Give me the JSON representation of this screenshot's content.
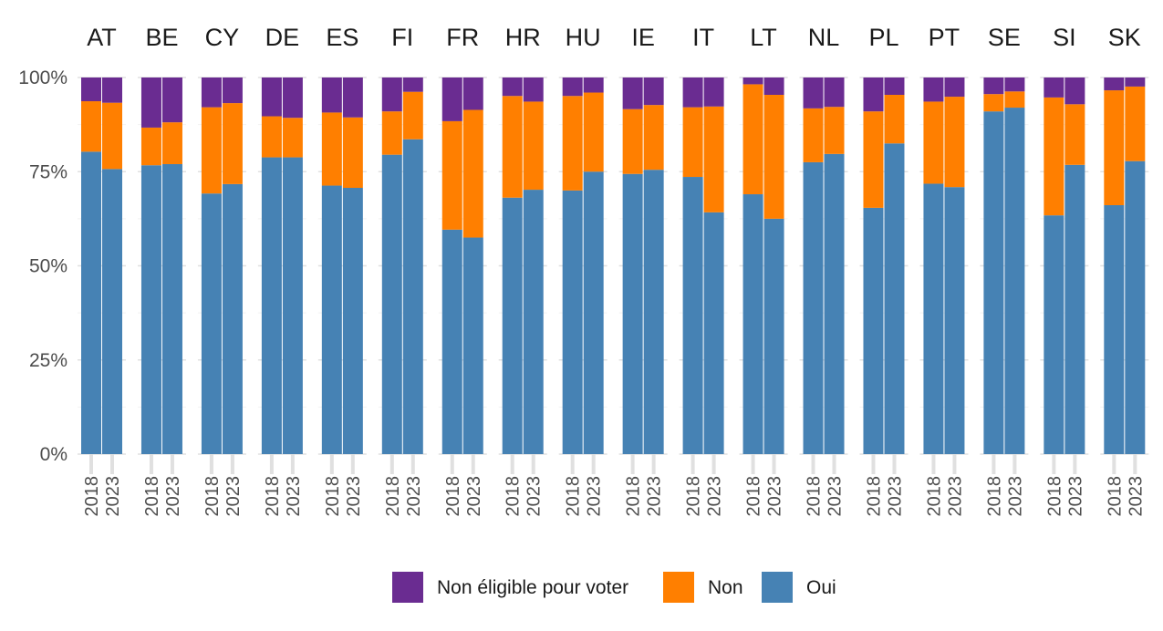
{
  "chart_data": {
    "type": "bar",
    "stacked": true,
    "facets": [
      "AT",
      "BE",
      "CY",
      "DE",
      "ES",
      "FI",
      "FR",
      "HR",
      "HU",
      "IE",
      "IT",
      "LT",
      "NL",
      "PL",
      "PT",
      "SE",
      "SI",
      "SK"
    ],
    "x": [
      "2018",
      "2023"
    ],
    "y_ticks": [
      "0%",
      "25%",
      "50%",
      "75%",
      "100%"
    ],
    "ylim": [
      0,
      1
    ],
    "grid": true,
    "legend_position": "bottom",
    "series": [
      {
        "name": "Oui",
        "color": "#4682B4",
        "values": [
          [
            0.803,
            0.757
          ],
          [
            0.767,
            0.77
          ],
          [
            0.692,
            0.717
          ],
          [
            0.788,
            0.788
          ],
          [
            0.713,
            0.707
          ],
          [
            0.795,
            0.836
          ],
          [
            0.596,
            0.575
          ],
          [
            0.681,
            0.702
          ],
          [
            0.7,
            0.75
          ],
          [
            0.744,
            0.755
          ],
          [
            0.736,
            0.642
          ],
          [
            0.69,
            0.625
          ],
          [
            0.775,
            0.797
          ],
          [
            0.654,
            0.825
          ],
          [
            0.718,
            0.709
          ],
          [
            0.91,
            0.92
          ],
          [
            0.634,
            0.768
          ],
          [
            0.661,
            0.778
          ]
        ]
      },
      {
        "name": "Non",
        "color": "#FF7F00",
        "values": [
          [
            0.134,
            0.176
          ],
          [
            0.1,
            0.111
          ],
          [
            0.229,
            0.215
          ],
          [
            0.109,
            0.105
          ],
          [
            0.194,
            0.187
          ],
          [
            0.115,
            0.126
          ],
          [
            0.288,
            0.339
          ],
          [
            0.27,
            0.234
          ],
          [
            0.251,
            0.21
          ],
          [
            0.172,
            0.172
          ],
          [
            0.185,
            0.281
          ],
          [
            0.292,
            0.329
          ],
          [
            0.143,
            0.125
          ],
          [
            0.256,
            0.129
          ],
          [
            0.218,
            0.24
          ],
          [
            0.046,
            0.043
          ],
          [
            0.313,
            0.161
          ],
          [
            0.305,
            0.198
          ]
        ]
      },
      {
        "name": "Non éligible pour voter",
        "color": "#6A2C91",
        "values": [
          [
            0.063,
            0.067
          ],
          [
            0.133,
            0.119
          ],
          [
            0.079,
            0.068
          ],
          [
            0.103,
            0.107
          ],
          [
            0.093,
            0.106
          ],
          [
            0.09,
            0.038
          ],
          [
            0.116,
            0.086
          ],
          [
            0.049,
            0.064
          ],
          [
            0.049,
            0.04
          ],
          [
            0.084,
            0.073
          ],
          [
            0.079,
            0.077
          ],
          [
            0.018,
            0.046
          ],
          [
            0.082,
            0.078
          ],
          [
            0.09,
            0.046
          ],
          [
            0.064,
            0.051
          ],
          [
            0.044,
            0.037
          ],
          [
            0.053,
            0.071
          ],
          [
            0.034,
            0.024
          ]
        ]
      }
    ],
    "legend": [
      {
        "label": "Non éligible pour voter",
        "color": "#6A2C91"
      },
      {
        "label": "Non",
        "color": "#FF7F00"
      },
      {
        "label": "Oui",
        "color": "#4682B4"
      }
    ]
  }
}
